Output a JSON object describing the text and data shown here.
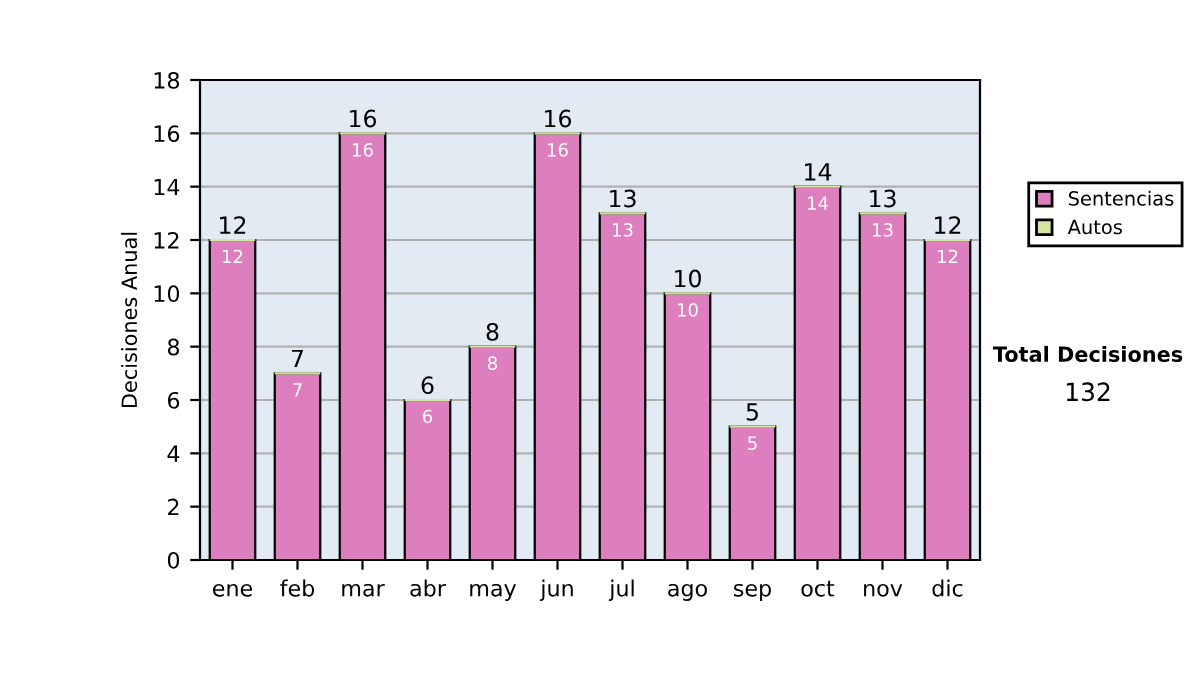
{
  "chart_data": {
    "type": "bar",
    "stacked": true,
    "ylabel": "Decisiones Anual",
    "categories": [
      "ene",
      "feb",
      "mar",
      "abr",
      "may",
      "jun",
      "jul",
      "ago",
      "sep",
      "oct",
      "nov",
      "dic"
    ],
    "series": [
      {
        "name": "Sentencias",
        "color": "#dd7fbf",
        "values": [
          12,
          7,
          16,
          6,
          8,
          16,
          13,
          10,
          5,
          14,
          13,
          12
        ],
        "value_labels": [
          "12",
          "7",
          "16",
          "6",
          "8",
          "16",
          "13",
          "10",
          "5",
          "14",
          "13",
          "12"
        ]
      },
      {
        "name": "Autos",
        "color": "#d4e6a0",
        "values": [
          0,
          0,
          0,
          0,
          0,
          0,
          0,
          0,
          0,
          0,
          0,
          0
        ]
      }
    ],
    "totals": [
      "12",
      "7",
      "16",
      "6",
      "8",
      "16",
      "13",
      "10",
      "5",
      "14",
      "13",
      "12"
    ],
    "ylim": [
      0,
      18
    ],
    "yticks": [
      0,
      2,
      4,
      6,
      8,
      10,
      12,
      14,
      16,
      18
    ],
    "grid": "y",
    "legend": "right",
    "annotations": [
      "Total Decisiones",
      "132"
    ]
  }
}
